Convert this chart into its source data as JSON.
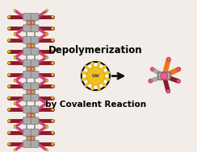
{
  "bg_color": "#f2ede8",
  "text_color": "#000000",
  "title_line1": "Depolymerization",
  "title_line2": "by Covalent Reaction",
  "font_size_title": 8.5,
  "font_size_sub": 7.5,
  "font_size_uv": 4.5,
  "uv_text": "UV",
  "sun_color": "#f0c020",
  "sun_ray_color": "#f0c020",
  "sun_outline": "#111111",
  "arrow_color": "#111111",
  "spine_color": "#aaaaaa",
  "arm_col_dark": "#8b1a2a",
  "arm_col_pink": "#d44070",
  "node_col": "#e8c840",
  "mon_orange": "#e87820",
  "mon_gray": "#aaaaaa",
  "mon_pink": "#e86090",
  "mon_dark": "#8b1a2a",
  "fig_width": 2.44,
  "fig_height": 1.89,
  "dpi": 100
}
